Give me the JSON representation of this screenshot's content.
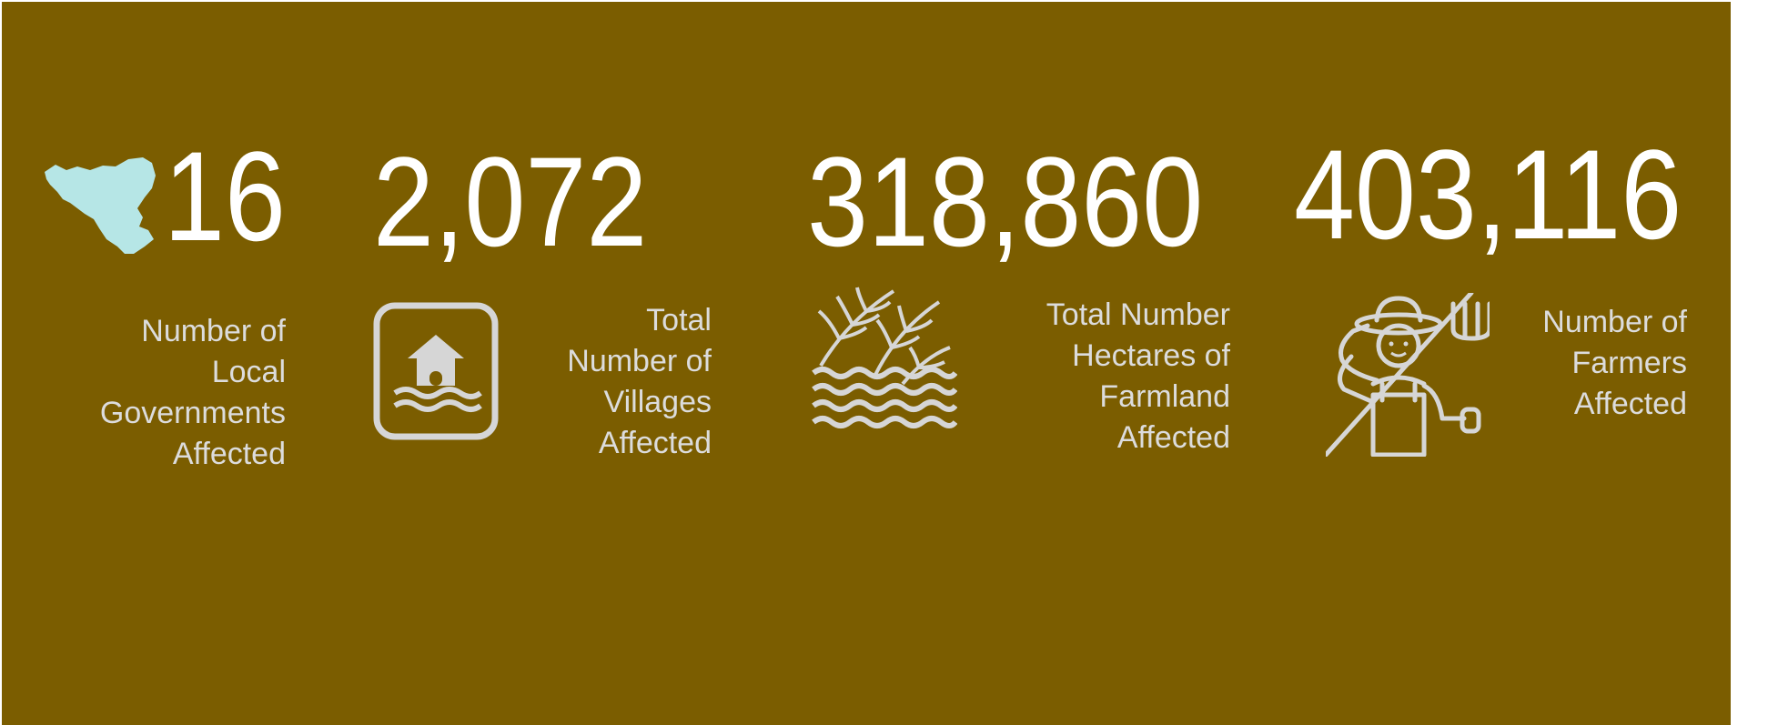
{
  "colors": {
    "background": "#7b5d00",
    "number_text": "#ffffff",
    "label_text": "#dcdcdc",
    "map_fill": "#b6e6e6",
    "icon_gray": "#d6d6d6"
  },
  "stats": [
    {
      "value": "16",
      "label": "Number of\nLocal\nGovernments\nAffected",
      "icon": "region-map-icon"
    },
    {
      "value": "2,072",
      "label": "Total\nNumber of\nVillages\nAffected",
      "icon": "flooded-house-icon"
    },
    {
      "value": "318,860",
      "label": "Total Number\nHectares of\nFarmland\nAffected",
      "icon": "flooded-crops-icon"
    },
    {
      "value": "403,116",
      "label": "Number of\nFarmers\nAffected",
      "icon": "farmer-icon"
    }
  ]
}
